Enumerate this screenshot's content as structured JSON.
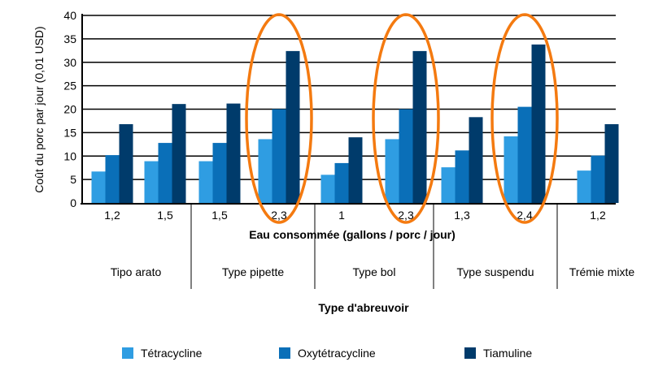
{
  "chart_data": {
    "type": "bar",
    "ylabel": "Coût du porc par jour (0,01 USD)",
    "xlabel": "Eau consommée (gallons / porc / jour)",
    "group_axis_label": "Type d'abreuvoir",
    "ylim": [
      0,
      40
    ],
    "yticks": [
      0,
      5,
      10,
      15,
      20,
      25,
      30,
      35,
      40
    ],
    "grid": true,
    "legend_position": "bottom",
    "categories": [
      "1,2",
      "1,5",
      "1,5",
      "2,3",
      "1",
      "2,3",
      "1,3",
      "2,4",
      "1,2"
    ],
    "groups": [
      {
        "label": "Tipo arato",
        "span": [
          0,
          1
        ]
      },
      {
        "label": "Type pipette",
        "span": [
          2,
          3
        ]
      },
      {
        "label": "Type bol",
        "span": [
          4,
          5
        ]
      },
      {
        "label": "Type suspendu",
        "span": [
          6,
          7
        ]
      },
      {
        "label": "Trémie mixte",
        "span": [
          8,
          8
        ]
      }
    ],
    "highlighted_categories": [
      3,
      5,
      7
    ],
    "series": [
      {
        "name": "Tétracycline",
        "color": "#2f9de2",
        "values": [
          6.7,
          8.9,
          8.9,
          13.6,
          6.0,
          13.6,
          7.6,
          14.2,
          6.9
        ]
      },
      {
        "name": "Oxytétracycline",
        "color": "#0a6fb8",
        "values": [
          10.2,
          12.8,
          12.8,
          20.0,
          8.5,
          20.0,
          11.2,
          20.5,
          10.1
        ]
      },
      {
        "name": "Tiamuline",
        "color": "#003b6b",
        "values": [
          16.8,
          21.1,
          21.2,
          32.4,
          14.0,
          32.4,
          18.3,
          33.8,
          16.8
        ]
      }
    ],
    "highlight_color": "#f47a10"
  }
}
